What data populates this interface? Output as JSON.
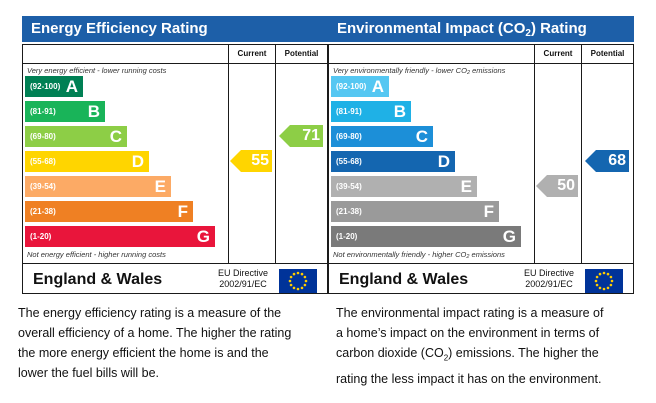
{
  "chart_data": [
    {
      "type": "bar",
      "title": "Energy Efficiency Rating",
      "title_suffix": "",
      "column_headers": [
        "Current",
        "Potential"
      ],
      "top_note": "Very energy efficient - lower running costs",
      "top_note_suffix": "",
      "bottom_note": "Not energy efficient - higher running costs",
      "bottom_note_suffix": "",
      "bands": [
        {
          "range": "(92-100)",
          "letter": "A",
          "color": "#008054"
        },
        {
          "range": "(81-91)",
          "letter": "B",
          "color": "#19b459"
        },
        {
          "range": "(69-80)",
          "letter": "C",
          "color": "#8dce46"
        },
        {
          "range": "(55-68)",
          "letter": "D",
          "color": "#ffd500"
        },
        {
          "range": "(39-54)",
          "letter": "E",
          "color": "#fcaa65"
        },
        {
          "range": "(21-38)",
          "letter": "F",
          "color": "#ef8023"
        },
        {
          "range": "(1-20)",
          "letter": "G",
          "color": "#e9153b"
        }
      ],
      "current": {
        "value": "55",
        "band": "D",
        "color": "#ffd500"
      },
      "potential": {
        "value": "71",
        "band": "C",
        "color": "#8dce46"
      },
      "footer": {
        "region": "England & Wales",
        "directive_line1": "EU Directive",
        "directive_line2": "2002/91/EC"
      }
    },
    {
      "type": "bar",
      "title": "Environmental Impact (CO",
      "title_sub": "2",
      "title_suffix": ") Rating",
      "column_headers": [
        "Current",
        "Potential"
      ],
      "top_note": "Very environmentally friendly - lower CO",
      "top_note_sub": "2",
      "top_note_suffix": " emissions",
      "bottom_note": "Not environmentally friendly - higher CO",
      "bottom_note_sub": "2",
      "bottom_note_suffix": " emissions",
      "bands": [
        {
          "range": "(92-100)",
          "letter": "A",
          "color": "#55c7f2"
        },
        {
          "range": "(81-91)",
          "letter": "B",
          "color": "#1fb1e6"
        },
        {
          "range": "(69-80)",
          "letter": "C",
          "color": "#1c8fd8"
        },
        {
          "range": "(55-68)",
          "letter": "D",
          "color": "#1466b0"
        },
        {
          "range": "(39-54)",
          "letter": "E",
          "color": "#b0b0b0"
        },
        {
          "range": "(21-38)",
          "letter": "F",
          "color": "#9a9a9a"
        },
        {
          "range": "(1-20)",
          "letter": "G",
          "color": "#7a7a7a"
        }
      ],
      "current": {
        "value": "50",
        "band": "E",
        "color": "#b0b0b0"
      },
      "potential": {
        "value": "68",
        "band": "D",
        "color": "#1466b0"
      },
      "footer": {
        "region": "England & Wales",
        "directive_line1": "EU Directive",
        "directive_line2": "2002/91/EC"
      }
    }
  ],
  "descriptions": {
    "energy": [
      "The energy efficiency rating is a measure of the",
      "overall efficiency of a home. The higher the rating",
      "the more energy efficient the home is and the",
      "lower the fuel bills will be."
    ],
    "environmental": {
      "line1": "The environmental impact rating is a measure of",
      "line2": "a home’s impact on the environment in terms of",
      "line3_pre": "carbon dioxide (CO",
      "line3_sub": "2",
      "line3_post": ") emissions. The higher the",
      "line4": "rating the less impact it has on the environment."
    }
  },
  "icons": {
    "flag": "eu-flag-icon",
    "arrow": "arrow-left-icon"
  }
}
